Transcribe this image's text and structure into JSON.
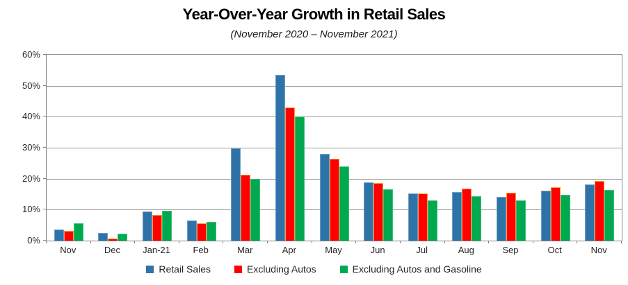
{
  "chart_data": {
    "type": "bar",
    "title": "Year-Over-Year Growth in Retail Sales",
    "subtitle": "(November 2020 – November 2021)",
    "categories": [
      "Nov",
      "Dec",
      "Jan-21",
      "Feb",
      "Mar",
      "Apr",
      "May",
      "Jun",
      "Jul",
      "Aug",
      "Sep",
      "Oct",
      "Nov"
    ],
    "series": [
      {
        "name": "Retail Sales",
        "color": "#2E73A8",
        "border_color": "#6F9DC2",
        "values": [
          3.5,
          2.4,
          9.5,
          6.4,
          29.7,
          53.4,
          28.1,
          18.7,
          15.2,
          15.6,
          14.1,
          16.1,
          18.1
        ]
      },
      {
        "name": "Excluding Autos",
        "color": "#FE0000",
        "border_color": "#FF9933",
        "values": [
          3.1,
          0.7,
          8.3,
          5.7,
          21.2,
          42.9,
          26.5,
          18.6,
          15.3,
          16.7,
          15.4,
          17.2,
          19.3
        ]
      },
      {
        "name": "Excluding Autos and Gasoline",
        "color": "#00A850",
        "border_color": "#3DBE7C",
        "values": [
          5.7,
          2.2,
          9.7,
          6.0,
          20.0,
          40.0,
          24.0,
          16.5,
          13.1,
          14.4,
          13.1,
          14.8,
          16.3
        ]
      }
    ],
    "y_axis": {
      "min": 0,
      "max": 60,
      "step": 10,
      "tick_labels": [
        "0%",
        "10%",
        "20%",
        "30%",
        "40%",
        "50%",
        "60%"
      ]
    },
    "grid": true,
    "legend_position": "bottom"
  },
  "colors": {
    "gridline": "#9a9a9a",
    "axis": "#808080",
    "label_text": "#262626"
  }
}
